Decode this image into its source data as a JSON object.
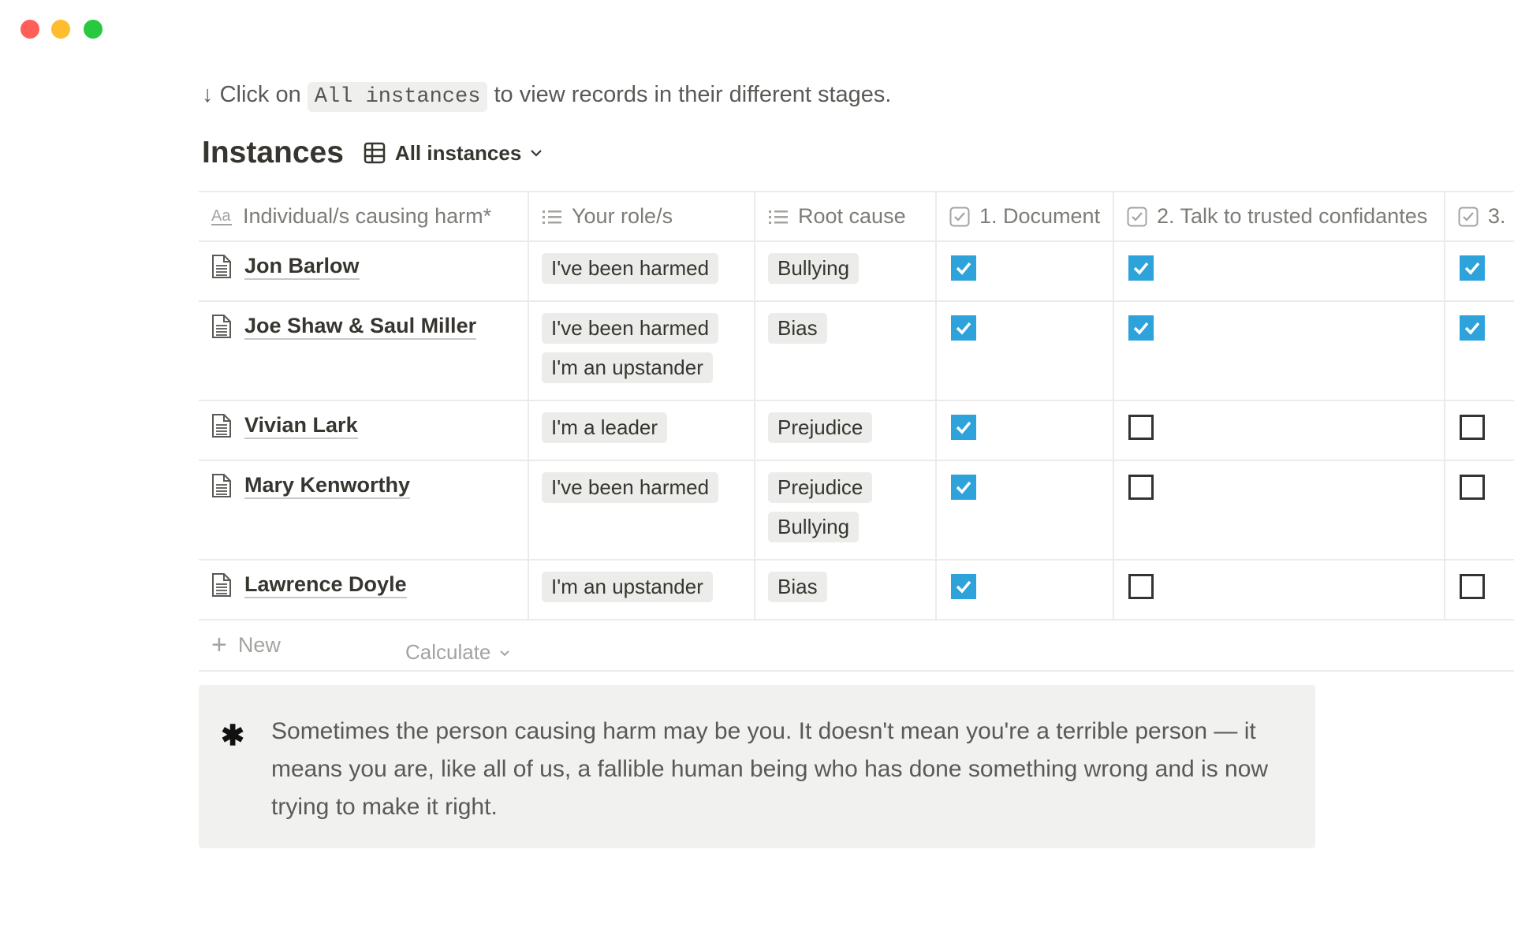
{
  "window": {
    "controls": [
      {
        "name": "close",
        "color": "#ff5f57"
      },
      {
        "name": "minimize",
        "color": "#febc2e"
      },
      {
        "name": "zoom",
        "color": "#28c840"
      }
    ]
  },
  "hint": {
    "arrow": "↓",
    "prefix": "Click on",
    "code": "All instances",
    "suffix": "to view records in their different stages."
  },
  "database": {
    "title": "Instances",
    "view_label": "All instances",
    "view_icon": "table-icon"
  },
  "table": {
    "columns": [
      {
        "label": "Individual/s causing harm*",
        "icon": "text-property-icon"
      },
      {
        "label": "Your role/s",
        "icon": "multi-select-icon"
      },
      {
        "label": "Root cause",
        "icon": "multi-select-icon"
      },
      {
        "label": "1. Document",
        "icon": "checkbox-property-icon"
      },
      {
        "label": "2. Talk to trusted confidantes",
        "icon": "checkbox-property-icon"
      },
      {
        "label": "3.",
        "icon": "checkbox-property-icon"
      }
    ],
    "rows": [
      {
        "name": "Jon Barlow",
        "roles": [
          "I've been harmed"
        ],
        "causes": [
          "Bullying"
        ],
        "checks": [
          true,
          true,
          true
        ]
      },
      {
        "name": "Joe Shaw & Saul Miller",
        "roles": [
          "I've been harmed",
          "I'm an upstander"
        ],
        "causes": [
          "Bias"
        ],
        "checks": [
          true,
          true,
          true
        ]
      },
      {
        "name": "Vivian Lark",
        "roles": [
          "I'm a leader"
        ],
        "causes": [
          "Prejudice"
        ],
        "checks": [
          true,
          false,
          false
        ]
      },
      {
        "name": "Mary Kenworthy",
        "roles": [
          "I've been harmed"
        ],
        "causes": [
          "Prejudice",
          "Bullying"
        ],
        "checks": [
          true,
          false,
          false
        ]
      },
      {
        "name": "Lawrence Doyle",
        "roles": [
          "I'm an upstander"
        ],
        "causes": [
          "Bias"
        ],
        "checks": [
          true,
          false,
          false
        ]
      }
    ],
    "new_label": "New",
    "calculate_label": "Calculate",
    "check_color": "#2ea2db"
  },
  "callout": {
    "icon": "✱",
    "text": "Sometimes the person causing harm may be you. It doesn't mean you're a terrible person — it means you are, like all of us, a fallible human being who has done something wrong and is now trying to make it right."
  }
}
